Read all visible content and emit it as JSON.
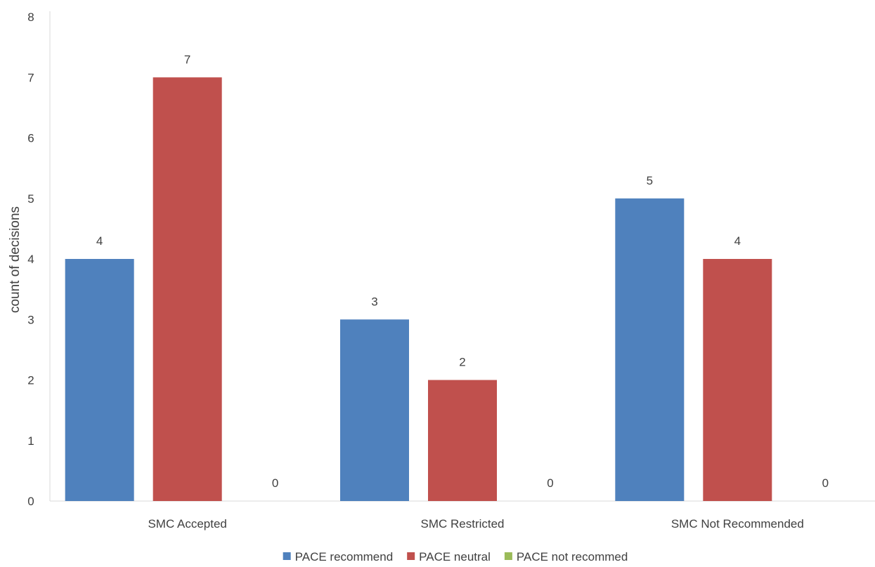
{
  "chart_data": {
    "type": "bar",
    "title": "",
    "xlabel": "",
    "ylabel": "count of decisions",
    "categories": [
      "SMC Accepted",
      "SMC Restricted",
      "SMC Not Recommended"
    ],
    "series": [
      {
        "name": "PACE recommend",
        "values": [
          4,
          3,
          5
        ],
        "color": "#4F81BD"
      },
      {
        "name": "PACE neutral",
        "values": [
          7,
          2,
          4
        ],
        "color": "#C0504D"
      },
      {
        "name": "PACE not recommed",
        "values": [
          0,
          0,
          0
        ],
        "color": "#9BBB59"
      }
    ],
    "ylim": [
      0,
      8
    ],
    "yticks": [
      0,
      1,
      2,
      3,
      4,
      5,
      6,
      7,
      8
    ],
    "grid": false,
    "legend_position": "bottom"
  }
}
